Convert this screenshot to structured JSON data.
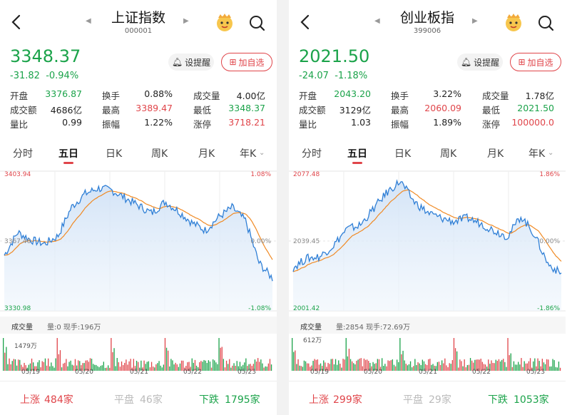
{
  "colors": {
    "up": "#e0454a",
    "down": "#1ba34a",
    "flat": "#999999",
    "price_line": "#2f7fd6",
    "avg_line": "#f08a24"
  },
  "panels": [
    {
      "title": "上证指数",
      "code": "000001",
      "price": "3348.37",
      "change": "-31.82",
      "change_pct": "-0.94%",
      "remind_label": "设提醒",
      "add_label": "加自选",
      "stats": [
        {
          "label": "开盘",
          "value": "3376.87",
          "color": "#1ba34a"
        },
        {
          "label": "换手",
          "value": "0.88%",
          "color": "#222222"
        },
        {
          "label": "成交量",
          "value": "4.00亿",
          "color": "#222222"
        },
        {
          "label": "成交额",
          "value": "4686亿",
          "color": "#222222"
        },
        {
          "label": "最高",
          "value": "3389.47",
          "color": "#e0454a"
        },
        {
          "label": "最低",
          "value": "3348.37",
          "color": "#1ba34a"
        },
        {
          "label": "量比",
          "value": "0.99",
          "color": "#222222"
        },
        {
          "label": "振幅",
          "value": "1.22%",
          "color": "#222222"
        },
        {
          "label": "涨停",
          "value": "3718.21",
          "color": "#e0454a"
        }
      ],
      "tabs": [
        "分时",
        "五日",
        "日K",
        "周K",
        "月K",
        "年K"
      ],
      "active_tab": 1,
      "chart": {
        "high": "3403.94",
        "mid": "3367.46",
        "low": "3330.98",
        "pct_high": "1.08%",
        "pct_mid": "0.00%",
        "pct_low": "-1.08%"
      },
      "volume": {
        "label": "成交量",
        "info": "量:0 现手:196万",
        "max": "1479万"
      },
      "dates": [
        "05/19",
        "05/20",
        "05/21",
        "05/22",
        "05/23"
      ],
      "footer": {
        "up_label": "上涨",
        "up_count": "484家",
        "flat_label": "平盘",
        "flat_count": "46家",
        "down_label": "下跌",
        "down_count": "1795家"
      }
    },
    {
      "title": "创业板指",
      "code": "399006",
      "price": "2021.50",
      "change": "-24.07",
      "change_pct": "-1.18%",
      "remind_label": "设提醒",
      "add_label": "加自选",
      "stats": [
        {
          "label": "开盘",
          "value": "2043.20",
          "color": "#1ba34a"
        },
        {
          "label": "换手",
          "value": "3.22%",
          "color": "#222222"
        },
        {
          "label": "成交量",
          "value": "1.78亿",
          "color": "#222222"
        },
        {
          "label": "成交额",
          "value": "3129亿",
          "color": "#222222"
        },
        {
          "label": "最高",
          "value": "2060.09",
          "color": "#e0454a"
        },
        {
          "label": "最低",
          "value": "2021.50",
          "color": "#1ba34a"
        },
        {
          "label": "量比",
          "value": "1.03",
          "color": "#222222"
        },
        {
          "label": "振幅",
          "value": "1.89%",
          "color": "#222222"
        },
        {
          "label": "涨停",
          "value": "100000.0",
          "color": "#e0454a"
        }
      ],
      "tabs": [
        "分时",
        "五日",
        "日K",
        "周K",
        "月K",
        "年K"
      ],
      "active_tab": 1,
      "chart": {
        "high": "2077.48",
        "mid": "2039.45",
        "low": "2001.42",
        "pct_high": "1.86%",
        "pct_mid": "0.00%",
        "pct_low": "-1.86%"
      },
      "volume": {
        "label": "成交量",
        "info": "量:2854 现手:72.69万",
        "max": "612万"
      },
      "dates": [
        "05/19",
        "05/20",
        "05/21",
        "05/22",
        "05/23"
      ],
      "footer": {
        "up_label": "上涨",
        "up_count": "299家",
        "flat_label": "平盘",
        "flat_count": "29家",
        "down_label": "下跌",
        "down_count": "1053家"
      }
    }
  ],
  "chart_data": [
    {
      "type": "line",
      "series": [
        {
          "values": [
            3360,
            3372,
            3368,
            3366,
            3370,
            3385,
            3392,
            3395,
            3394,
            3390,
            3386,
            3382,
            3388,
            3383,
            3377,
            3373,
            3380,
            3385,
            3378,
            3356,
            3348
          ]
        }
      ]
    },
    {
      "type": "line",
      "series": [
        {
          "values": [
            2025,
            2030,
            2031,
            2037,
            2046,
            2048,
            2057,
            2066,
            2072,
            2061,
            2055,
            2052,
            2050,
            2052,
            2049,
            2045,
            2042,
            2053,
            2043,
            2027,
            2021.5
          ]
        }
      ]
    }
  ]
}
